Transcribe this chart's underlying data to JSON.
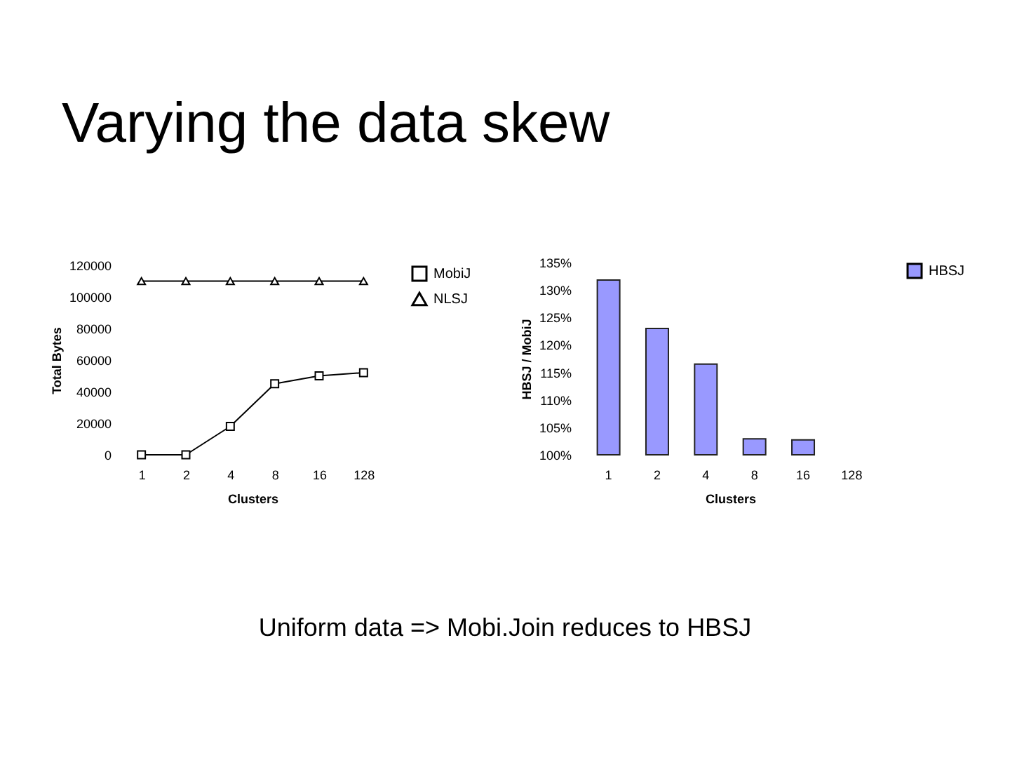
{
  "chart_data": [
    {
      "type": "line",
      "title": "Varying the data skew",
      "xlabel": "Clusters",
      "ylabel": "Total Bytes",
      "categories": [
        "1",
        "2",
        "4",
        "8",
        "16",
        "128"
      ],
      "series": [
        {
          "name": "MobiJ",
          "color": "#000000",
          "marker": "square",
          "values": [
            0,
            0,
            18000,
            45000,
            50000,
            52000
          ]
        },
        {
          "name": "NLSJ",
          "color": "#000000",
          "marker": "triangle",
          "values": [
            110000,
            110000,
            110000,
            110000,
            110000,
            110000
          ]
        }
      ],
      "ylim": [
        0,
        120000
      ],
      "yticks": [
        0,
        20000,
        40000,
        60000,
        80000,
        100000,
        120000
      ],
      "grid": false,
      "legend": "right"
    },
    {
      "type": "bar",
      "xlabel": "Clusters",
      "ylabel": "HBSJ / MobiJ",
      "categories": [
        "1",
        "2",
        "4",
        "8",
        "16",
        "128"
      ],
      "series": [
        {
          "name": "HBSJ",
          "color": "#9999ff",
          "values": [
            131.8,
            123.0,
            116.5,
            102.9,
            102.7,
            null
          ]
        }
      ],
      "ylim": [
        100,
        135
      ],
      "yticks": [
        {
          "value": 100,
          "label": "100%"
        },
        {
          "value": 105,
          "label": "105%"
        },
        {
          "value": 110,
          "label": "110%"
        },
        {
          "value": 115,
          "label": "115%"
        },
        {
          "value": 120,
          "label": "120%"
        },
        {
          "value": 125,
          "label": "125%"
        },
        {
          "value": 130,
          "label": "130%"
        },
        {
          "value": 135,
          "label": "135%"
        }
      ],
      "grid": false,
      "legend": "right",
      "annotations": [
        "Uniform data => Mobi.Join reduces to HBSJ"
      ]
    }
  ]
}
